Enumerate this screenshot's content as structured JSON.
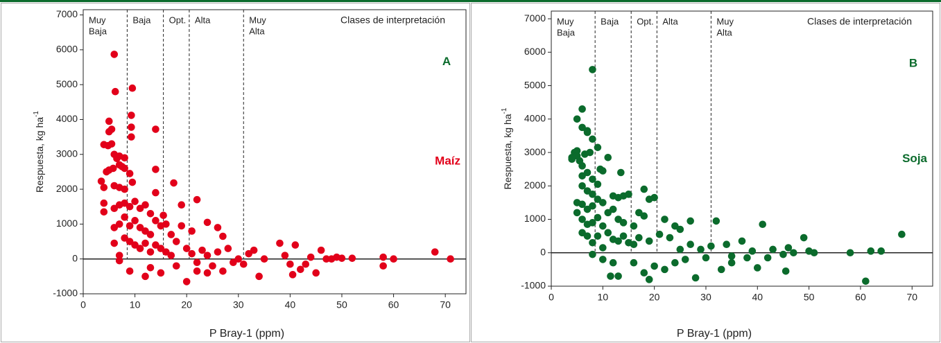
{
  "chart_data": [
    {
      "type": "scatter",
      "panel_label": "A",
      "crop_label": "Maíz",
      "panel_color": "#0b6b2c",
      "crop_color": "#e2001a",
      "xlabel": "P Bray-1 (ppm)",
      "ylabel": "Respuesta, kg ha",
      "ylabel_sup": "-1",
      "xlim": [
        0,
        74
      ],
      "ylim": [
        -1000,
        7150
      ],
      "xticks": [
        0,
        10,
        20,
        30,
        40,
        50,
        60,
        70
      ],
      "yticks": [
        -1000,
        0,
        1000,
        2000,
        3000,
        4000,
        5000,
        6000,
        7000
      ],
      "thresholds": [
        8.5,
        15.5,
        20.5,
        31
      ],
      "classes": [
        [
          "Muy",
          "Baja"
        ],
        [
          "Baja"
        ],
        [
          "Opt."
        ],
        [
          "Alta"
        ],
        [
          "Muy",
          "Alta"
        ]
      ],
      "classes_title": "Clases de interpretación",
      "series": [
        {
          "name": "Maíz",
          "color": "#e2001a",
          "x": [
            6,
            6.2,
            9.5,
            9.3,
            9.3,
            9.3,
            14,
            5,
            5.5,
            5,
            4,
            4.8,
            5.5,
            6,
            6.5,
            7,
            8,
            3.5,
            4,
            4.5,
            5,
            5.8,
            7,
            7.5,
            8,
            9,
            9.5,
            6,
            7,
            8,
            14,
            17.5,
            4,
            4,
            6,
            7,
            8,
            9,
            10,
            11,
            12,
            13,
            14,
            15.5,
            19,
            22,
            6,
            7,
            8,
            9,
            10,
            11,
            12,
            13,
            14,
            15,
            16,
            17,
            19,
            21,
            24,
            26,
            6,
            7,
            8,
            9,
            10,
            11,
            12,
            13,
            14,
            15,
            16,
            17,
            18,
            20,
            21,
            22,
            23,
            24,
            25,
            26,
            27,
            28,
            29,
            30,
            31,
            32,
            33,
            34,
            35,
            7,
            9,
            12,
            13,
            15,
            18,
            20,
            22,
            24,
            27,
            38,
            39,
            40,
            41,
            42,
            43,
            44,
            45,
            46,
            47,
            48,
            49,
            50,
            52,
            58,
            58,
            60,
            68,
            71,
            40.5
          ],
          "values": [
            5870,
            4800,
            4900,
            4120,
            3780,
            3500,
            3720,
            3950,
            3720,
            3650,
            3280,
            3250,
            3300,
            3000,
            2880,
            2950,
            2900,
            2230,
            2050,
            2500,
            2550,
            2600,
            2700,
            2650,
            2600,
            2450,
            2200,
            2100,
            2050,
            2000,
            2570,
            2180,
            1600,
            1350,
            1450,
            1550,
            1600,
            1500,
            1650,
            1450,
            1550,
            1300,
            1900,
            1250,
            1550,
            1700,
            900,
            1000,
            1200,
            950,
            1100,
            900,
            800,
            700,
            1100,
            950,
            1000,
            700,
            950,
            800,
            1050,
            900,
            450,
            100,
            600,
            500,
            400,
            300,
            450,
            200,
            400,
            300,
            200,
            100,
            500,
            300,
            150,
            -100,
            250,
            100,
            -200,
            200,
            650,
            300,
            -100,
            0,
            -150,
            150,
            250,
            -500,
            0,
            -50,
            -350,
            -500,
            -250,
            -400,
            -200,
            -650,
            -350,
            -400,
            -350,
            450,
            100,
            -150,
            400,
            -300,
            -150,
            50,
            -400,
            250,
            0,
            0,
            50,
            20,
            20,
            -200,
            50,
            0,
            200,
            0,
            -450
          ]
        }
      ]
    },
    {
      "type": "scatter",
      "panel_label": "B",
      "crop_label": "Soja",
      "panel_color": "#0b6b2c",
      "crop_color": "#0b6b2c",
      "xlabel": "P Bray-1 (ppm)",
      "ylabel": "Respuesta, kg ha",
      "ylabel_sup": "-1",
      "xlim": [
        0,
        74
      ],
      "ylim": [
        -1000,
        7230
      ],
      "xticks": [
        0,
        10,
        20,
        30,
        40,
        50,
        60,
        70
      ],
      "yticks": [
        -1000,
        0,
        1000,
        2000,
        3000,
        4000,
        5000,
        6000,
        7000
      ],
      "thresholds": [
        8.5,
        15.5,
        20.5,
        31
      ],
      "classes": [
        [
          "Muy",
          "Baja"
        ],
        [
          "Baja"
        ],
        [
          "Opt."
        ],
        [
          "Alta"
        ],
        [
          "Muy",
          "Alta"
        ]
      ],
      "classes_title": "Clases de interpretación",
      "series": [
        {
          "name": "Soja",
          "color": "#0b6b2c",
          "x": [
            8,
            6,
            5,
            6,
            7,
            8,
            9,
            4,
            4.5,
            5,
            5,
            5.5,
            6,
            7,
            7.5,
            6.5,
            4,
            6,
            7,
            8,
            9,
            9.5,
            10,
            11,
            13.5,
            6,
            7,
            8,
            5,
            6,
            7,
            8,
            9,
            10,
            12,
            13,
            14,
            15,
            17,
            18,
            19,
            20,
            5,
            6,
            7,
            8,
            9,
            10,
            11,
            12,
            13,
            14,
            16,
            18,
            22,
            24,
            25,
            27,
            6,
            7,
            8,
            9,
            10,
            11,
            12,
            13,
            14,
            15,
            16,
            17,
            19,
            21,
            23,
            25,
            27,
            29,
            31,
            32,
            34,
            35,
            37,
            39,
            41,
            42,
            43,
            45,
            46,
            47,
            49,
            50,
            51,
            58,
            62,
            64,
            68,
            61,
            8,
            10,
            12,
            13,
            11.5,
            16,
            18,
            19,
            20,
            22,
            24,
            26,
            28,
            30,
            33,
            35,
            38,
            40,
            45.5
          ],
          "values": [
            5480,
            4300,
            4000,
            3750,
            3650,
            3400,
            3150,
            2800,
            3000,
            3050,
            2900,
            2750,
            2600,
            3600,
            3000,
            2950,
            2850,
            2300,
            2400,
            2200,
            2050,
            2500,
            2450,
            2850,
            2400,
            2000,
            1850,
            1750,
            1500,
            1450,
            1300,
            1400,
            1600,
            1500,
            1700,
            1650,
            1700,
            1750,
            1200,
            1900,
            1600,
            1650,
            1200,
            1000,
            850,
            900,
            1050,
            800,
            1200,
            1300,
            1000,
            900,
            800,
            1100,
            1000,
            800,
            700,
            950,
            600,
            500,
            300,
            500,
            150,
            600,
            400,
            350,
            500,
            300,
            250,
            450,
            350,
            550,
            450,
            100,
            250,
            100,
            200,
            950,
            250,
            -100,
            350,
            50,
            850,
            -150,
            100,
            -50,
            150,
            0,
            450,
            50,
            0,
            0,
            50,
            50,
            550,
            -850,
            -50,
            -200,
            -300,
            -700,
            -700,
            -300,
            -600,
            -800,
            -400,
            -500,
            -300,
            -200,
            -750,
            -150,
            -500,
            -300,
            -150,
            -450,
            -550
          ]
        }
      ]
    }
  ]
}
